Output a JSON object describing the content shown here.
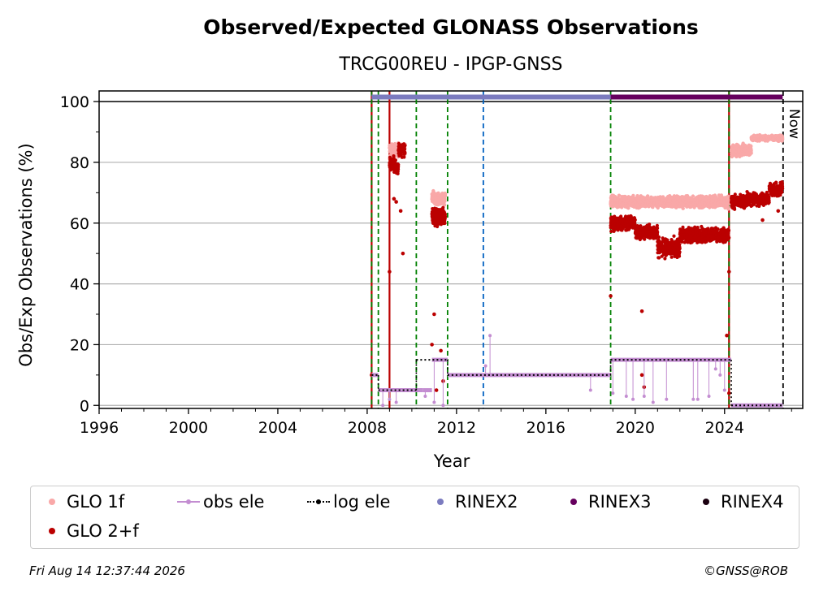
{
  "chart_data": {
    "type": "scatter",
    "title": "Observed/Expected GLONASS Observations",
    "subtitle": "TRCG00REU - IPGP-GNSS",
    "xlabel": "Year",
    "ylabel": "Obs/Exp Observations (%)",
    "xlim": [
      1996,
      2027.5
    ],
    "ylim": [
      -1,
      103.5
    ],
    "x_ticks": [
      1996,
      2000,
      2004,
      2008,
      2012,
      2016,
      2020,
      2024
    ],
    "y_ticks": [
      0,
      20,
      40,
      60,
      80,
      100
    ],
    "grid": "horizontal",
    "annotation": "Now",
    "series": [
      {
        "name": "GLO 1f",
        "color": "#f9a8a8",
        "segments": [
          {
            "x_start": 2009.0,
            "x_end": 2009.7,
            "y_mean": 84,
            "y_spread": 3
          },
          {
            "x_start": 2010.9,
            "x_end": 2011.5,
            "y_mean": 68,
            "y_spread": 3
          },
          {
            "x_start": 2018.9,
            "x_end": 2024.2,
            "y_mean": 67,
            "y_spread": 2.5
          },
          {
            "x_start": 2024.3,
            "x_end": 2025.2,
            "y_mean": 84,
            "y_spread": 2.5
          },
          {
            "x_start": 2025.2,
            "x_end": 2026.6,
            "y_mean": 88,
            "y_spread": 1.2
          }
        ]
      },
      {
        "name": "GLO 2+f",
        "color": "#bb0000",
        "segments": [
          {
            "x_start": 2009.0,
            "x_end": 2009.2,
            "y_mean": 80,
            "y_spread": 3
          },
          {
            "x_start": 2009.2,
            "x_end": 2009.4,
            "y_mean": 78,
            "y_spread": 3
          },
          {
            "x_start": 2009.4,
            "x_end": 2009.7,
            "y_mean": 84,
            "y_spread": 3
          },
          {
            "x_start": 2010.9,
            "x_end": 2011.5,
            "y_mean": 62,
            "y_spread": 4
          },
          {
            "x_start": 2018.9,
            "x_end": 2020.0,
            "y_mean": 60,
            "y_spread": 3
          },
          {
            "x_start": 2020.0,
            "x_end": 2021.0,
            "y_mean": 57,
            "y_spread": 3
          },
          {
            "x_start": 2021.0,
            "x_end": 2022.0,
            "y_mean": 52,
            "y_spread": 4
          },
          {
            "x_start": 2022.0,
            "x_end": 2023.0,
            "y_mean": 56,
            "y_spread": 3.5
          },
          {
            "x_start": 2023.0,
            "x_end": 2024.2,
            "y_mean": 56,
            "y_spread": 3
          },
          {
            "x_start": 2024.3,
            "x_end": 2025.0,
            "y_mean": 67,
            "y_spread": 3
          },
          {
            "x_start": 2025.0,
            "x_end": 2026.0,
            "y_mean": 68,
            "y_spread": 3
          },
          {
            "x_start": 2026.0,
            "x_end": 2026.6,
            "y_mean": 71,
            "y_spread": 3
          }
        ],
        "outliers": [
          {
            "x": 2008.2,
            "y": 10
          },
          {
            "x": 2009.0,
            "y": 44
          },
          {
            "x": 2009.2,
            "y": 68
          },
          {
            "x": 2009.3,
            "y": 67
          },
          {
            "x": 2009.5,
            "y": 64
          },
          {
            "x": 2009.6,
            "y": 50
          },
          {
            "x": 2010.9,
            "y": 20
          },
          {
            "x": 2011.0,
            "y": 30
          },
          {
            "x": 2011.1,
            "y": 5
          },
          {
            "x": 2011.3,
            "y": 18
          },
          {
            "x": 2011.4,
            "y": 8
          },
          {
            "x": 2018.9,
            "y": 36
          },
          {
            "x": 2020.3,
            "y": 31
          },
          {
            "x": 2020.3,
            "y": 10
          },
          {
            "x": 2020.4,
            "y": 6
          },
          {
            "x": 2024.2,
            "y": 44
          },
          {
            "x": 2024.1,
            "y": 23
          },
          {
            "x": 2024.2,
            "y": 4
          },
          {
            "x": 2025.7,
            "y": 61
          },
          {
            "x": 2026.4,
            "y": 64
          }
        ]
      },
      {
        "name": "obs ele",
        "color": "#c38dd1",
        "steps": [
          {
            "x_start": 2008.2,
            "x_end": 2008.5,
            "y": 10
          },
          {
            "x_start": 2008.5,
            "x_end": 2010.5,
            "y": 5
          },
          {
            "x_start": 2010.5,
            "x_end": 2010.9,
            "y": 5
          },
          {
            "x_start": 2010.9,
            "x_end": 2011.6,
            "y": 15
          },
          {
            "x_start": 2011.6,
            "x_end": 2018.9,
            "y": 10
          },
          {
            "x_start": 2018.9,
            "x_end": 2024.3,
            "y": 15
          },
          {
            "x_start": 2024.3,
            "x_end": 2026.6,
            "y": 0
          }
        ],
        "dips": [
          {
            "x": 2008.7,
            "y": 0
          },
          {
            "x": 2009.0,
            "y": 2
          },
          {
            "x": 2009.3,
            "y": 1
          },
          {
            "x": 2010.6,
            "y": 3
          },
          {
            "x": 2011.0,
            "y": 1
          },
          {
            "x": 2011.4,
            "y": 0
          },
          {
            "x": 2013.5,
            "y": 23
          },
          {
            "x": 2013.3,
            "y": 13
          },
          {
            "x": 2018.0,
            "y": 5
          },
          {
            "x": 2019.0,
            "y": 4
          },
          {
            "x": 2019.6,
            "y": 3
          },
          {
            "x": 2019.9,
            "y": 2
          },
          {
            "x": 2020.4,
            "y": 3
          },
          {
            "x": 2020.8,
            "y": 1
          },
          {
            "x": 2021.4,
            "y": 2
          },
          {
            "x": 2022.6,
            "y": 2
          },
          {
            "x": 2022.8,
            "y": 2
          },
          {
            "x": 2023.3,
            "y": 3
          },
          {
            "x": 2023.8,
            "y": 10
          },
          {
            "x": 2023.6,
            "y": 12
          },
          {
            "x": 2024.0,
            "y": 5
          }
        ]
      },
      {
        "name": "log ele",
        "color": "#000000",
        "steps": [
          {
            "x_start": 2008.2,
            "x_end": 2008.5,
            "y": 10
          },
          {
            "x_start": 2008.5,
            "x_end": 2010.2,
            "y": 5
          },
          {
            "x_start": 2010.2,
            "x_end": 2011.6,
            "y": 15
          },
          {
            "x_start": 2011.6,
            "x_end": 2018.9,
            "y": 10
          },
          {
            "x_start": 2018.9,
            "x_end": 2024.3,
            "y": 15
          },
          {
            "x_start": 2024.3,
            "x_end": 2026.6,
            "y": 0
          }
        ]
      },
      {
        "name": "RINEX2",
        "color": "#7b7bbf",
        "range": [
          2008.2,
          2018.9
        ],
        "y": 101.5
      },
      {
        "name": "RINEX3",
        "color": "#66005e",
        "range": [
          2018.9,
          2026.6
        ],
        "y": 101.5
      },
      {
        "name": "RINEX4",
        "color": "#1a0010",
        "range": [],
        "y": 101.5
      }
    ],
    "vertical_lines": [
      {
        "x": 2008.2,
        "color": "#bb0000",
        "style": "solid"
      },
      {
        "x": 2008.2,
        "color": "#008000",
        "style": "dashed"
      },
      {
        "x": 2008.5,
        "color": "#008000",
        "style": "dashed"
      },
      {
        "x": 2009.0,
        "color": "#bb0000",
        "style": "solid"
      },
      {
        "x": 2010.2,
        "color": "#008000",
        "style": "dashed"
      },
      {
        "x": 2011.6,
        "color": "#008000",
        "style": "dashed"
      },
      {
        "x": 2013.2,
        "color": "#0060c0",
        "style": "dashed"
      },
      {
        "x": 2018.9,
        "color": "#008000",
        "style": "dashed"
      },
      {
        "x": 2024.2,
        "color": "#bb0000",
        "style": "solid"
      },
      {
        "x": 2024.2,
        "color": "#008000",
        "style": "dashed"
      },
      {
        "x": 2026.62,
        "color": "#000000",
        "style": "dashed"
      }
    ]
  },
  "legend": [
    {
      "label": "GLO 1f",
      "kind": "dot",
      "color": "#f9a8a8"
    },
    {
      "label": "obs ele",
      "kind": "line-dot",
      "color": "#c38dd1"
    },
    {
      "label": "log ele",
      "kind": "dotted-dot",
      "color": "#000000"
    },
    {
      "label": "RINEX2",
      "kind": "dot",
      "color": "#7b7bbf"
    },
    {
      "label": "RINEX3",
      "kind": "dot",
      "color": "#66005e"
    },
    {
      "label": "RINEX4",
      "kind": "dot",
      "color": "#1a0010"
    },
    {
      "label": "GLO 2+f",
      "kind": "dot",
      "color": "#bb0000"
    }
  ],
  "footer": {
    "timestamp": "Fri Aug 14 12:37:44 2026",
    "credit": "©GNSS@ROB"
  }
}
